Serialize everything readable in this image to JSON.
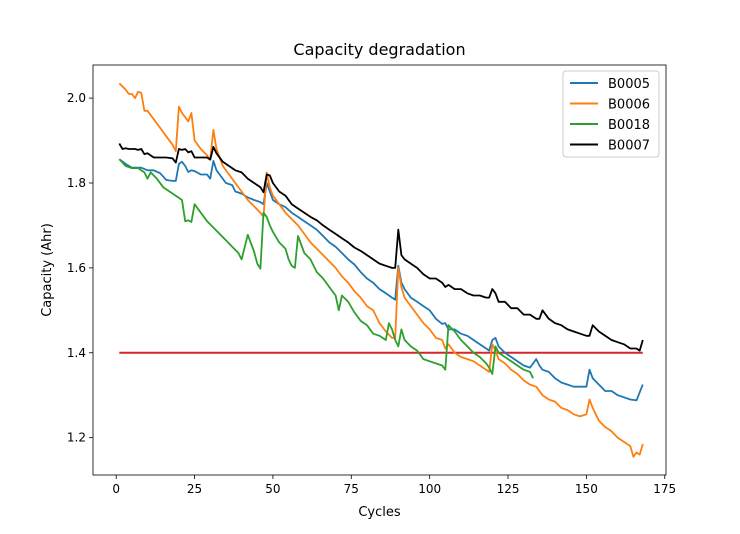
{
  "chart_data": {
    "type": "line",
    "title": "Capacity degradation",
    "xlabel": "Cycles",
    "ylabel": "Capacity (Ahr)",
    "xlim": [
      -7.4,
      175.4
    ],
    "ylim": [
      1.112,
      2.078
    ],
    "xticks": [
      0,
      25,
      50,
      75,
      100,
      125,
      150,
      175
    ],
    "yticks": [
      1.2,
      1.4,
      1.6,
      1.8,
      2.0
    ],
    "grid": false,
    "legend_position": "top-right",
    "series": [
      {
        "name": "B0005",
        "color": "#1f77b4",
        "x": [
          1,
          3,
          5,
          8,
          10,
          12,
          14,
          16,
          18,
          19,
          20,
          21,
          22,
          23,
          24,
          25,
          27,
          29,
          30,
          31,
          32,
          33,
          35,
          37,
          38,
          40,
          42,
          44,
          46,
          47,
          48,
          49,
          50,
          52,
          54,
          56,
          58,
          60,
          62,
          64,
          66,
          68,
          70,
          72,
          74,
          76,
          78,
          80,
          82,
          84,
          86,
          88,
          89,
          90,
          91,
          92,
          94,
          96,
          98,
          100,
          102,
          104,
          105,
          106,
          108,
          110,
          112,
          114,
          116,
          118,
          119,
          120,
          121,
          122,
          124,
          126,
          128,
          130,
          132,
          134,
          135,
          136,
          138,
          140,
          142,
          144,
          146,
          148,
          150,
          151,
          152,
          154,
          156,
          158,
          160,
          162,
          164,
          166,
          168
        ],
        "y": [
          1.856,
          1.845,
          1.836,
          1.836,
          1.83,
          1.83,
          1.823,
          1.807,
          1.805,
          1.805,
          1.845,
          1.85,
          1.84,
          1.826,
          1.83,
          1.828,
          1.82,
          1.82,
          1.81,
          1.852,
          1.83,
          1.82,
          1.8,
          1.795,
          1.78,
          1.775,
          1.766,
          1.76,
          1.755,
          1.75,
          1.8,
          1.78,
          1.76,
          1.75,
          1.743,
          1.73,
          1.72,
          1.71,
          1.7,
          1.69,
          1.675,
          1.66,
          1.65,
          1.635,
          1.62,
          1.608,
          1.59,
          1.575,
          1.565,
          1.55,
          1.54,
          1.53,
          1.525,
          1.605,
          1.565,
          1.55,
          1.53,
          1.52,
          1.51,
          1.5,
          1.48,
          1.468,
          1.47,
          1.455,
          1.455,
          1.445,
          1.44,
          1.43,
          1.42,
          1.41,
          1.405,
          1.43,
          1.435,
          1.415,
          1.4,
          1.39,
          1.38,
          1.37,
          1.365,
          1.385,
          1.37,
          1.36,
          1.355,
          1.34,
          1.33,
          1.325,
          1.32,
          1.32,
          1.32,
          1.36,
          1.34,
          1.325,
          1.31,
          1.31,
          1.3,
          1.295,
          1.29,
          1.288,
          1.325
        ]
      },
      {
        "name": "B0006",
        "color": "#ff7f0e",
        "x": [
          1,
          3,
          4,
          5,
          6,
          7,
          8,
          9,
          10,
          12,
          14,
          16,
          18,
          19,
          20,
          21,
          23,
          24,
          25,
          27,
          29,
          30,
          31,
          32,
          34,
          36,
          38,
          40,
          42,
          44,
          46,
          47,
          48,
          49,
          50,
          52,
          54,
          56,
          58,
          60,
          62,
          64,
          66,
          68,
          70,
          72,
          74,
          76,
          78,
          80,
          82,
          84,
          86,
          88,
          89,
          90,
          91,
          92,
          94,
          96,
          98,
          100,
          102,
          104,
          105,
          106,
          108,
          110,
          112,
          114,
          116,
          118,
          119,
          120,
          121,
          122,
          124,
          126,
          128,
          130,
          132,
          134,
          136,
          138,
          140,
          142,
          144,
          146,
          148,
          150,
          151,
          152,
          154,
          156,
          158,
          160,
          162,
          164,
          165,
          166,
          167,
          168
        ],
        "y": [
          2.035,
          2.02,
          2.01,
          2.01,
          2.0,
          2.015,
          2.012,
          1.97,
          1.97,
          1.95,
          1.93,
          1.91,
          1.89,
          1.875,
          1.98,
          1.965,
          1.945,
          1.965,
          1.9,
          1.88,
          1.865,
          1.855,
          1.925,
          1.88,
          1.84,
          1.82,
          1.8,
          1.78,
          1.76,
          1.745,
          1.73,
          1.72,
          1.825,
          1.79,
          1.77,
          1.75,
          1.73,
          1.715,
          1.7,
          1.68,
          1.66,
          1.645,
          1.63,
          1.615,
          1.6,
          1.58,
          1.565,
          1.545,
          1.53,
          1.51,
          1.5,
          1.47,
          1.45,
          1.435,
          1.435,
          1.6,
          1.555,
          1.53,
          1.51,
          1.49,
          1.47,
          1.455,
          1.435,
          1.43,
          1.41,
          1.42,
          1.4,
          1.39,
          1.385,
          1.38,
          1.37,
          1.36,
          1.355,
          1.42,
          1.405,
          1.385,
          1.375,
          1.36,
          1.35,
          1.335,
          1.325,
          1.32,
          1.3,
          1.29,
          1.285,
          1.27,
          1.265,
          1.255,
          1.25,
          1.255,
          1.29,
          1.27,
          1.24,
          1.225,
          1.215,
          1.2,
          1.19,
          1.18,
          1.155,
          1.165,
          1.16,
          1.185
        ]
      },
      {
        "name": "B0018",
        "color": "#2ca02c",
        "x": [
          1,
          3,
          5,
          7,
          9,
          10,
          11,
          13,
          15,
          17,
          19,
          21,
          22,
          23,
          24,
          25,
          27,
          29,
          31,
          33,
          35,
          37,
          39,
          40,
          42,
          44,
          45,
          46,
          47,
          48,
          49,
          50,
          52,
          54,
          55,
          56,
          57,
          58,
          60,
          62,
          64,
          66,
          68,
          70,
          71,
          72,
          74,
          76,
          78,
          80,
          82,
          84,
          86,
          87,
          88,
          89,
          90,
          91,
          92,
          94,
          96,
          98,
          100,
          102,
          104,
          105,
          106,
          108,
          110,
          112,
          114,
          116,
          118,
          119,
          120,
          121,
          122,
          124,
          126,
          128,
          130,
          132,
          133
        ],
        "y": [
          1.856,
          1.84,
          1.835,
          1.835,
          1.825,
          1.81,
          1.825,
          1.81,
          1.79,
          1.78,
          1.77,
          1.76,
          1.71,
          1.712,
          1.708,
          1.75,
          1.73,
          1.71,
          1.695,
          1.68,
          1.665,
          1.65,
          1.635,
          1.62,
          1.678,
          1.638,
          1.61,
          1.598,
          1.73,
          1.72,
          1.7,
          1.685,
          1.66,
          1.645,
          1.62,
          1.605,
          1.6,
          1.675,
          1.635,
          1.62,
          1.59,
          1.575,
          1.555,
          1.535,
          1.5,
          1.535,
          1.52,
          1.495,
          1.475,
          1.465,
          1.445,
          1.44,
          1.43,
          1.47,
          1.455,
          1.43,
          1.415,
          1.455,
          1.43,
          1.415,
          1.405,
          1.385,
          1.38,
          1.375,
          1.37,
          1.36,
          1.465,
          1.45,
          1.43,
          1.415,
          1.4,
          1.39,
          1.375,
          1.365,
          1.35,
          1.415,
          1.4,
          1.39,
          1.38,
          1.37,
          1.36,
          1.355,
          1.34
        ]
      },
      {
        "name": "B0007",
        "color": "#000000",
        "x": [
          1,
          2,
          3,
          4,
          5,
          6,
          7,
          8,
          9,
          10,
          12,
          14,
          16,
          18,
          19,
          20,
          21,
          22,
          23,
          24,
          25,
          27,
          29,
          30,
          31,
          32,
          34,
          36,
          38,
          40,
          42,
          44,
          46,
          47,
          48,
          49,
          50,
          52,
          54,
          56,
          58,
          60,
          62,
          64,
          66,
          68,
          70,
          72,
          74,
          76,
          78,
          80,
          82,
          84,
          86,
          88,
          89,
          90,
          91,
          92,
          94,
          96,
          98,
          100,
          102,
          104,
          105,
          106,
          108,
          110,
          112,
          114,
          116,
          118,
          119,
          120,
          121,
          122,
          124,
          126,
          128,
          130,
          132,
          134,
          135,
          136,
          138,
          140,
          142,
          144,
          146,
          148,
          150,
          151,
          152,
          154,
          156,
          158,
          160,
          162,
          164,
          166,
          167,
          168
        ],
        "y": [
          1.893,
          1.88,
          1.882,
          1.88,
          1.88,
          1.88,
          1.878,
          1.88,
          1.868,
          1.87,
          1.86,
          1.86,
          1.86,
          1.858,
          1.848,
          1.88,
          1.878,
          1.88,
          1.872,
          1.875,
          1.86,
          1.86,
          1.86,
          1.855,
          1.885,
          1.87,
          1.85,
          1.84,
          1.83,
          1.825,
          1.81,
          1.8,
          1.79,
          1.778,
          1.82,
          1.818,
          1.8,
          1.78,
          1.77,
          1.75,
          1.74,
          1.73,
          1.72,
          1.712,
          1.7,
          1.69,
          1.68,
          1.67,
          1.66,
          1.648,
          1.64,
          1.63,
          1.62,
          1.61,
          1.605,
          1.6,
          1.6,
          1.69,
          1.63,
          1.62,
          1.61,
          1.6,
          1.585,
          1.575,
          1.575,
          1.565,
          1.555,
          1.56,
          1.55,
          1.55,
          1.54,
          1.535,
          1.535,
          1.53,
          1.53,
          1.55,
          1.54,
          1.52,
          1.52,
          1.505,
          1.505,
          1.49,
          1.49,
          1.48,
          1.48,
          1.5,
          1.48,
          1.47,
          1.465,
          1.455,
          1.45,
          1.445,
          1.44,
          1.44,
          1.465,
          1.45,
          1.44,
          1.43,
          1.425,
          1.42,
          1.41,
          1.41,
          1.405,
          1.43
        ]
      }
    ],
    "threshold": {
      "y": 1.4,
      "x_start": 1,
      "x_end": 168,
      "color": "#d62728"
    }
  }
}
